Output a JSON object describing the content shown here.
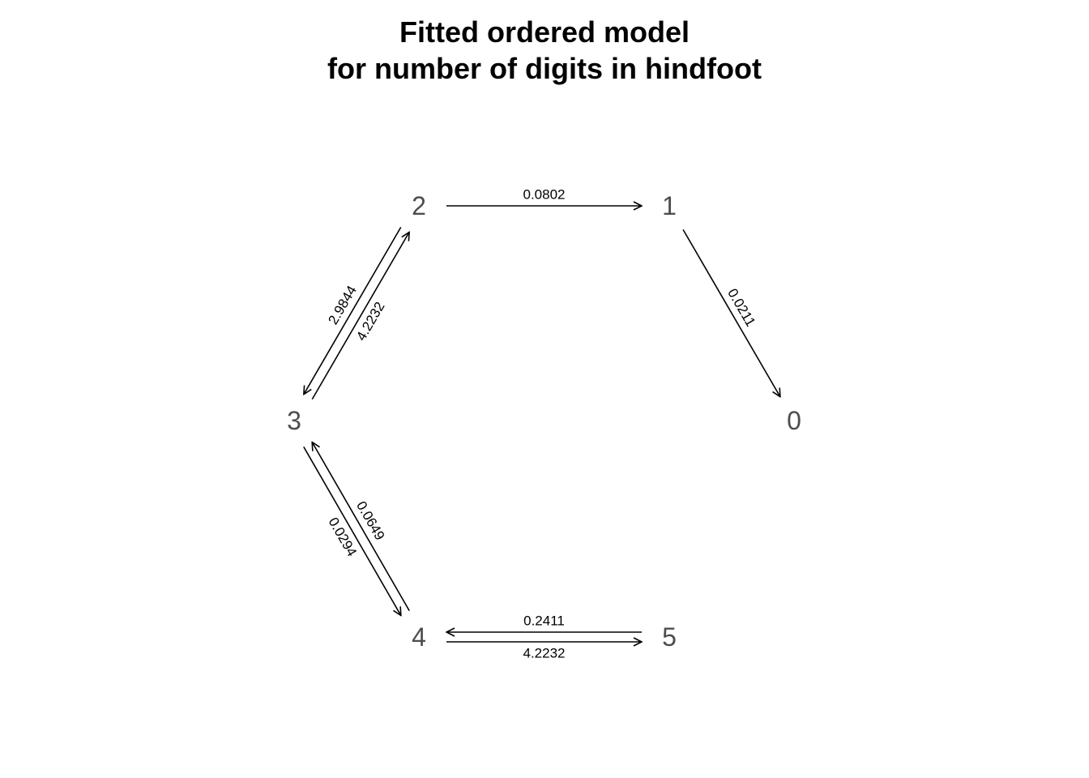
{
  "title": {
    "line1": "Fitted ordered model",
    "line2": "for number of digits in hindfoot"
  },
  "diagram": {
    "nodes": [
      {
        "id": "0",
        "label": "0"
      },
      {
        "id": "1",
        "label": "1"
      },
      {
        "id": "2",
        "label": "2"
      },
      {
        "id": "3",
        "label": "3"
      },
      {
        "id": "4",
        "label": "4"
      },
      {
        "id": "5",
        "label": "5"
      }
    ],
    "edges": [
      {
        "from": "2",
        "to": "1",
        "rate": "0.0802"
      },
      {
        "from": "1",
        "to": "0",
        "rate": "0.0211"
      },
      {
        "from": "3",
        "to": "2",
        "rate": "4.2232"
      },
      {
        "from": "2",
        "to": "3",
        "rate": "2.9844"
      },
      {
        "from": "3",
        "to": "4",
        "rate": "0.0294"
      },
      {
        "from": "4",
        "to": "3",
        "rate": "0.0649"
      },
      {
        "from": "4",
        "to": "5",
        "rate": "4.2232"
      },
      {
        "from": "5",
        "to": "4",
        "rate": "0.2411"
      }
    ]
  }
}
